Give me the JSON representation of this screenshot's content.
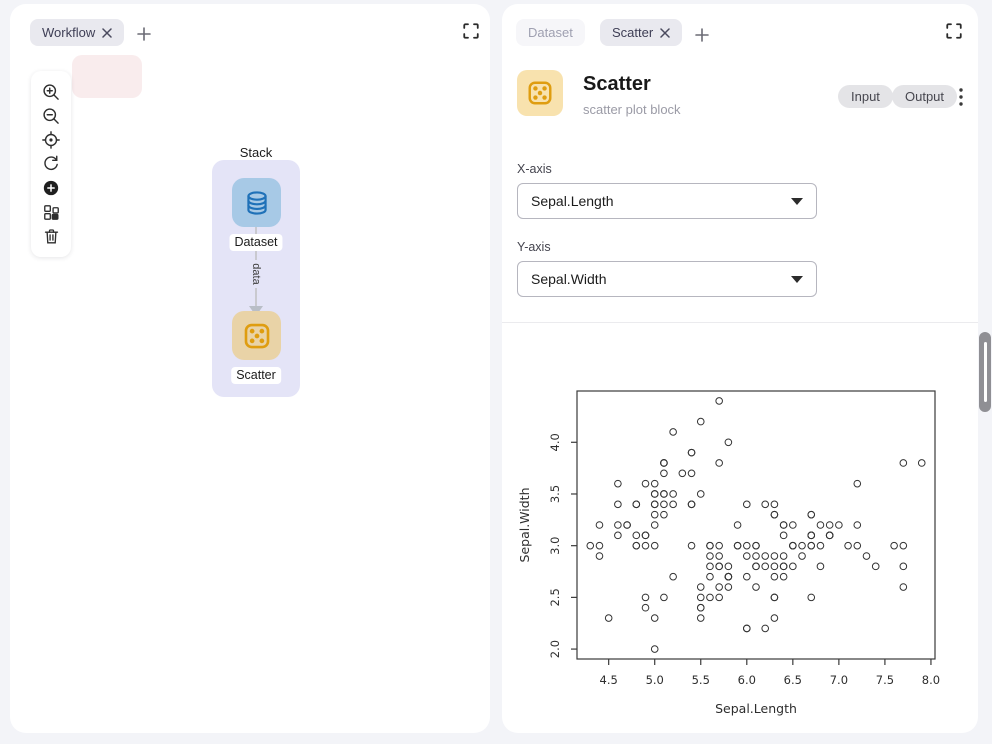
{
  "left_panel": {
    "tab": {
      "label": "Workflow"
    },
    "canvas": {
      "group_title": "Stack",
      "dataset_node_label": "Dataset",
      "scatter_node_label": "Scatter",
      "edge_label": "data",
      "toolbar_icons": [
        "zoom-in",
        "zoom-out",
        "locate",
        "reset-view",
        "add-node",
        "auto-layout",
        "delete"
      ]
    }
  },
  "right_panel": {
    "tabs": [
      {
        "label": "Dataset",
        "active": false
      },
      {
        "label": "Scatter",
        "active": true
      }
    ],
    "block": {
      "title": "Scatter",
      "subtitle": "scatter plot block",
      "input_label": "Input",
      "output_label": "Output"
    },
    "form": {
      "x_label": "X-axis",
      "x_value": "Sepal.Length",
      "y_label": "Y-axis",
      "y_value": "Sepal.Width"
    }
  },
  "colors": {
    "page_bg": "#f3f4f8",
    "stack_group": "#e4e4f7",
    "dataset_node": "#a7c9e6",
    "dataset_icon": "#1f71b8",
    "scatter_node": "#e9d3a7",
    "scatter_icon": "#df9d10",
    "header_tile": "#f8e2ae",
    "pink_node": "#f9eced",
    "plot_stroke": "#3a3a3a"
  },
  "chart_data": {
    "type": "scatter",
    "title": "",
    "xlabel": "Sepal.Length",
    "ylabel": "Sepal.Width",
    "x_ticks": [
      4.5,
      5.0,
      5.5,
      6.0,
      6.5,
      7.0,
      7.5,
      8.0
    ],
    "y_ticks": [
      2.0,
      2.5,
      3.0,
      3.5,
      4.0
    ],
    "xlim": [
      4.156,
      8.044
    ],
    "ylim": [
      1.904,
      4.496
    ],
    "grid": false,
    "legend": false,
    "marker": "open-circle",
    "points": [
      [
        5.1,
        3.5
      ],
      [
        4.9,
        3.0
      ],
      [
        4.7,
        3.2
      ],
      [
        4.6,
        3.1
      ],
      [
        5.0,
        3.6
      ],
      [
        5.4,
        3.9
      ],
      [
        4.6,
        3.4
      ],
      [
        5.0,
        3.4
      ],
      [
        4.4,
        2.9
      ],
      [
        4.9,
        3.1
      ],
      [
        5.4,
        3.7
      ],
      [
        4.8,
        3.4
      ],
      [
        4.8,
        3.0
      ],
      [
        4.3,
        3.0
      ],
      [
        5.8,
        4.0
      ],
      [
        5.7,
        4.4
      ],
      [
        5.4,
        3.9
      ],
      [
        5.1,
        3.5
      ],
      [
        5.7,
        3.8
      ],
      [
        5.1,
        3.8
      ],
      [
        5.4,
        3.4
      ],
      [
        5.1,
        3.7
      ],
      [
        4.6,
        3.6
      ],
      [
        5.1,
        3.3
      ],
      [
        4.8,
        3.4
      ],
      [
        5.0,
        3.0
      ],
      [
        5.0,
        3.4
      ],
      [
        5.2,
        3.5
      ],
      [
        5.2,
        3.4
      ],
      [
        4.7,
        3.2
      ],
      [
        4.8,
        3.1
      ],
      [
        5.4,
        3.4
      ],
      [
        5.2,
        4.1
      ],
      [
        5.5,
        4.2
      ],
      [
        4.9,
        3.1
      ],
      [
        5.0,
        3.2
      ],
      [
        5.5,
        3.5
      ],
      [
        4.9,
        3.6
      ],
      [
        4.4,
        3.0
      ],
      [
        5.1,
        3.4
      ],
      [
        5.0,
        3.5
      ],
      [
        4.5,
        2.3
      ],
      [
        4.4,
        3.2
      ],
      [
        5.0,
        3.5
      ],
      [
        5.1,
        3.8
      ],
      [
        4.8,
        3.0
      ],
      [
        5.1,
        3.8
      ],
      [
        4.6,
        3.2
      ],
      [
        5.3,
        3.7
      ],
      [
        5.0,
        3.3
      ],
      [
        7.0,
        3.2
      ],
      [
        6.4,
        3.2
      ],
      [
        6.9,
        3.1
      ],
      [
        5.5,
        2.3
      ],
      [
        6.5,
        2.8
      ],
      [
        5.7,
        2.8
      ],
      [
        6.3,
        3.3
      ],
      [
        4.9,
        2.4
      ],
      [
        6.6,
        2.9
      ],
      [
        5.2,
        2.7
      ],
      [
        5.0,
        2.0
      ],
      [
        5.9,
        3.0
      ],
      [
        6.0,
        2.2
      ],
      [
        6.1,
        2.9
      ],
      [
        5.6,
        2.9
      ],
      [
        6.7,
        3.1
      ],
      [
        5.6,
        3.0
      ],
      [
        5.8,
        2.7
      ],
      [
        6.2,
        2.2
      ],
      [
        5.6,
        2.5
      ],
      [
        5.9,
        3.2
      ],
      [
        6.1,
        2.8
      ],
      [
        6.3,
        2.5
      ],
      [
        6.1,
        2.8
      ],
      [
        6.4,
        2.9
      ],
      [
        6.6,
        3.0
      ],
      [
        6.8,
        2.8
      ],
      [
        6.7,
        3.0
      ],
      [
        6.0,
        2.9
      ],
      [
        5.7,
        2.6
      ],
      [
        5.5,
        2.4
      ],
      [
        5.5,
        2.4
      ],
      [
        5.8,
        2.7
      ],
      [
        6.0,
        2.7
      ],
      [
        5.4,
        3.0
      ],
      [
        6.0,
        3.4
      ],
      [
        6.7,
        3.1
      ],
      [
        6.3,
        2.3
      ],
      [
        5.6,
        3.0
      ],
      [
        5.5,
        2.5
      ],
      [
        5.5,
        2.6
      ],
      [
        6.1,
        3.0
      ],
      [
        5.8,
        2.6
      ],
      [
        5.0,
        2.3
      ],
      [
        5.6,
        2.7
      ],
      [
        5.7,
        3.0
      ],
      [
        5.7,
        2.9
      ],
      [
        6.2,
        2.9
      ],
      [
        5.1,
        2.5
      ],
      [
        5.7,
        2.8
      ],
      [
        6.3,
        3.3
      ],
      [
        5.8,
        2.7
      ],
      [
        7.1,
        3.0
      ],
      [
        6.3,
        2.9
      ],
      [
        6.5,
        3.0
      ],
      [
        7.6,
        3.0
      ],
      [
        4.9,
        2.5
      ],
      [
        7.3,
        2.9
      ],
      [
        6.7,
        2.5
      ],
      [
        7.2,
        3.6
      ],
      [
        6.5,
        3.2
      ],
      [
        6.4,
        2.7
      ],
      [
        6.8,
        3.0
      ],
      [
        5.7,
        2.5
      ],
      [
        5.8,
        2.8
      ],
      [
        6.4,
        3.2
      ],
      [
        6.5,
        3.0
      ],
      [
        7.7,
        3.8
      ],
      [
        7.7,
        2.6
      ],
      [
        6.0,
        2.2
      ],
      [
        6.9,
        3.2
      ],
      [
        5.6,
        2.8
      ],
      [
        7.7,
        2.8
      ],
      [
        6.3,
        2.7
      ],
      [
        6.7,
        3.3
      ],
      [
        7.2,
        3.2
      ],
      [
        6.2,
        2.8
      ],
      [
        6.1,
        3.0
      ],
      [
        6.4,
        2.8
      ],
      [
        7.2,
        3.0
      ],
      [
        7.4,
        2.8
      ],
      [
        7.9,
        3.8
      ],
      [
        6.4,
        2.8
      ],
      [
        6.3,
        2.8
      ],
      [
        6.1,
        2.6
      ],
      [
        7.7,
        3.0
      ],
      [
        6.3,
        3.4
      ],
      [
        6.4,
        3.1
      ],
      [
        6.0,
        3.0
      ],
      [
        6.9,
        3.1
      ],
      [
        6.7,
        3.1
      ],
      [
        6.9,
        3.1
      ],
      [
        5.8,
        2.7
      ],
      [
        6.8,
        3.2
      ],
      [
        6.7,
        3.3
      ],
      [
        6.7,
        3.0
      ],
      [
        6.3,
        2.5
      ],
      [
        6.5,
        3.0
      ],
      [
        6.2,
        3.4
      ],
      [
        5.9,
        3.0
      ]
    ]
  }
}
